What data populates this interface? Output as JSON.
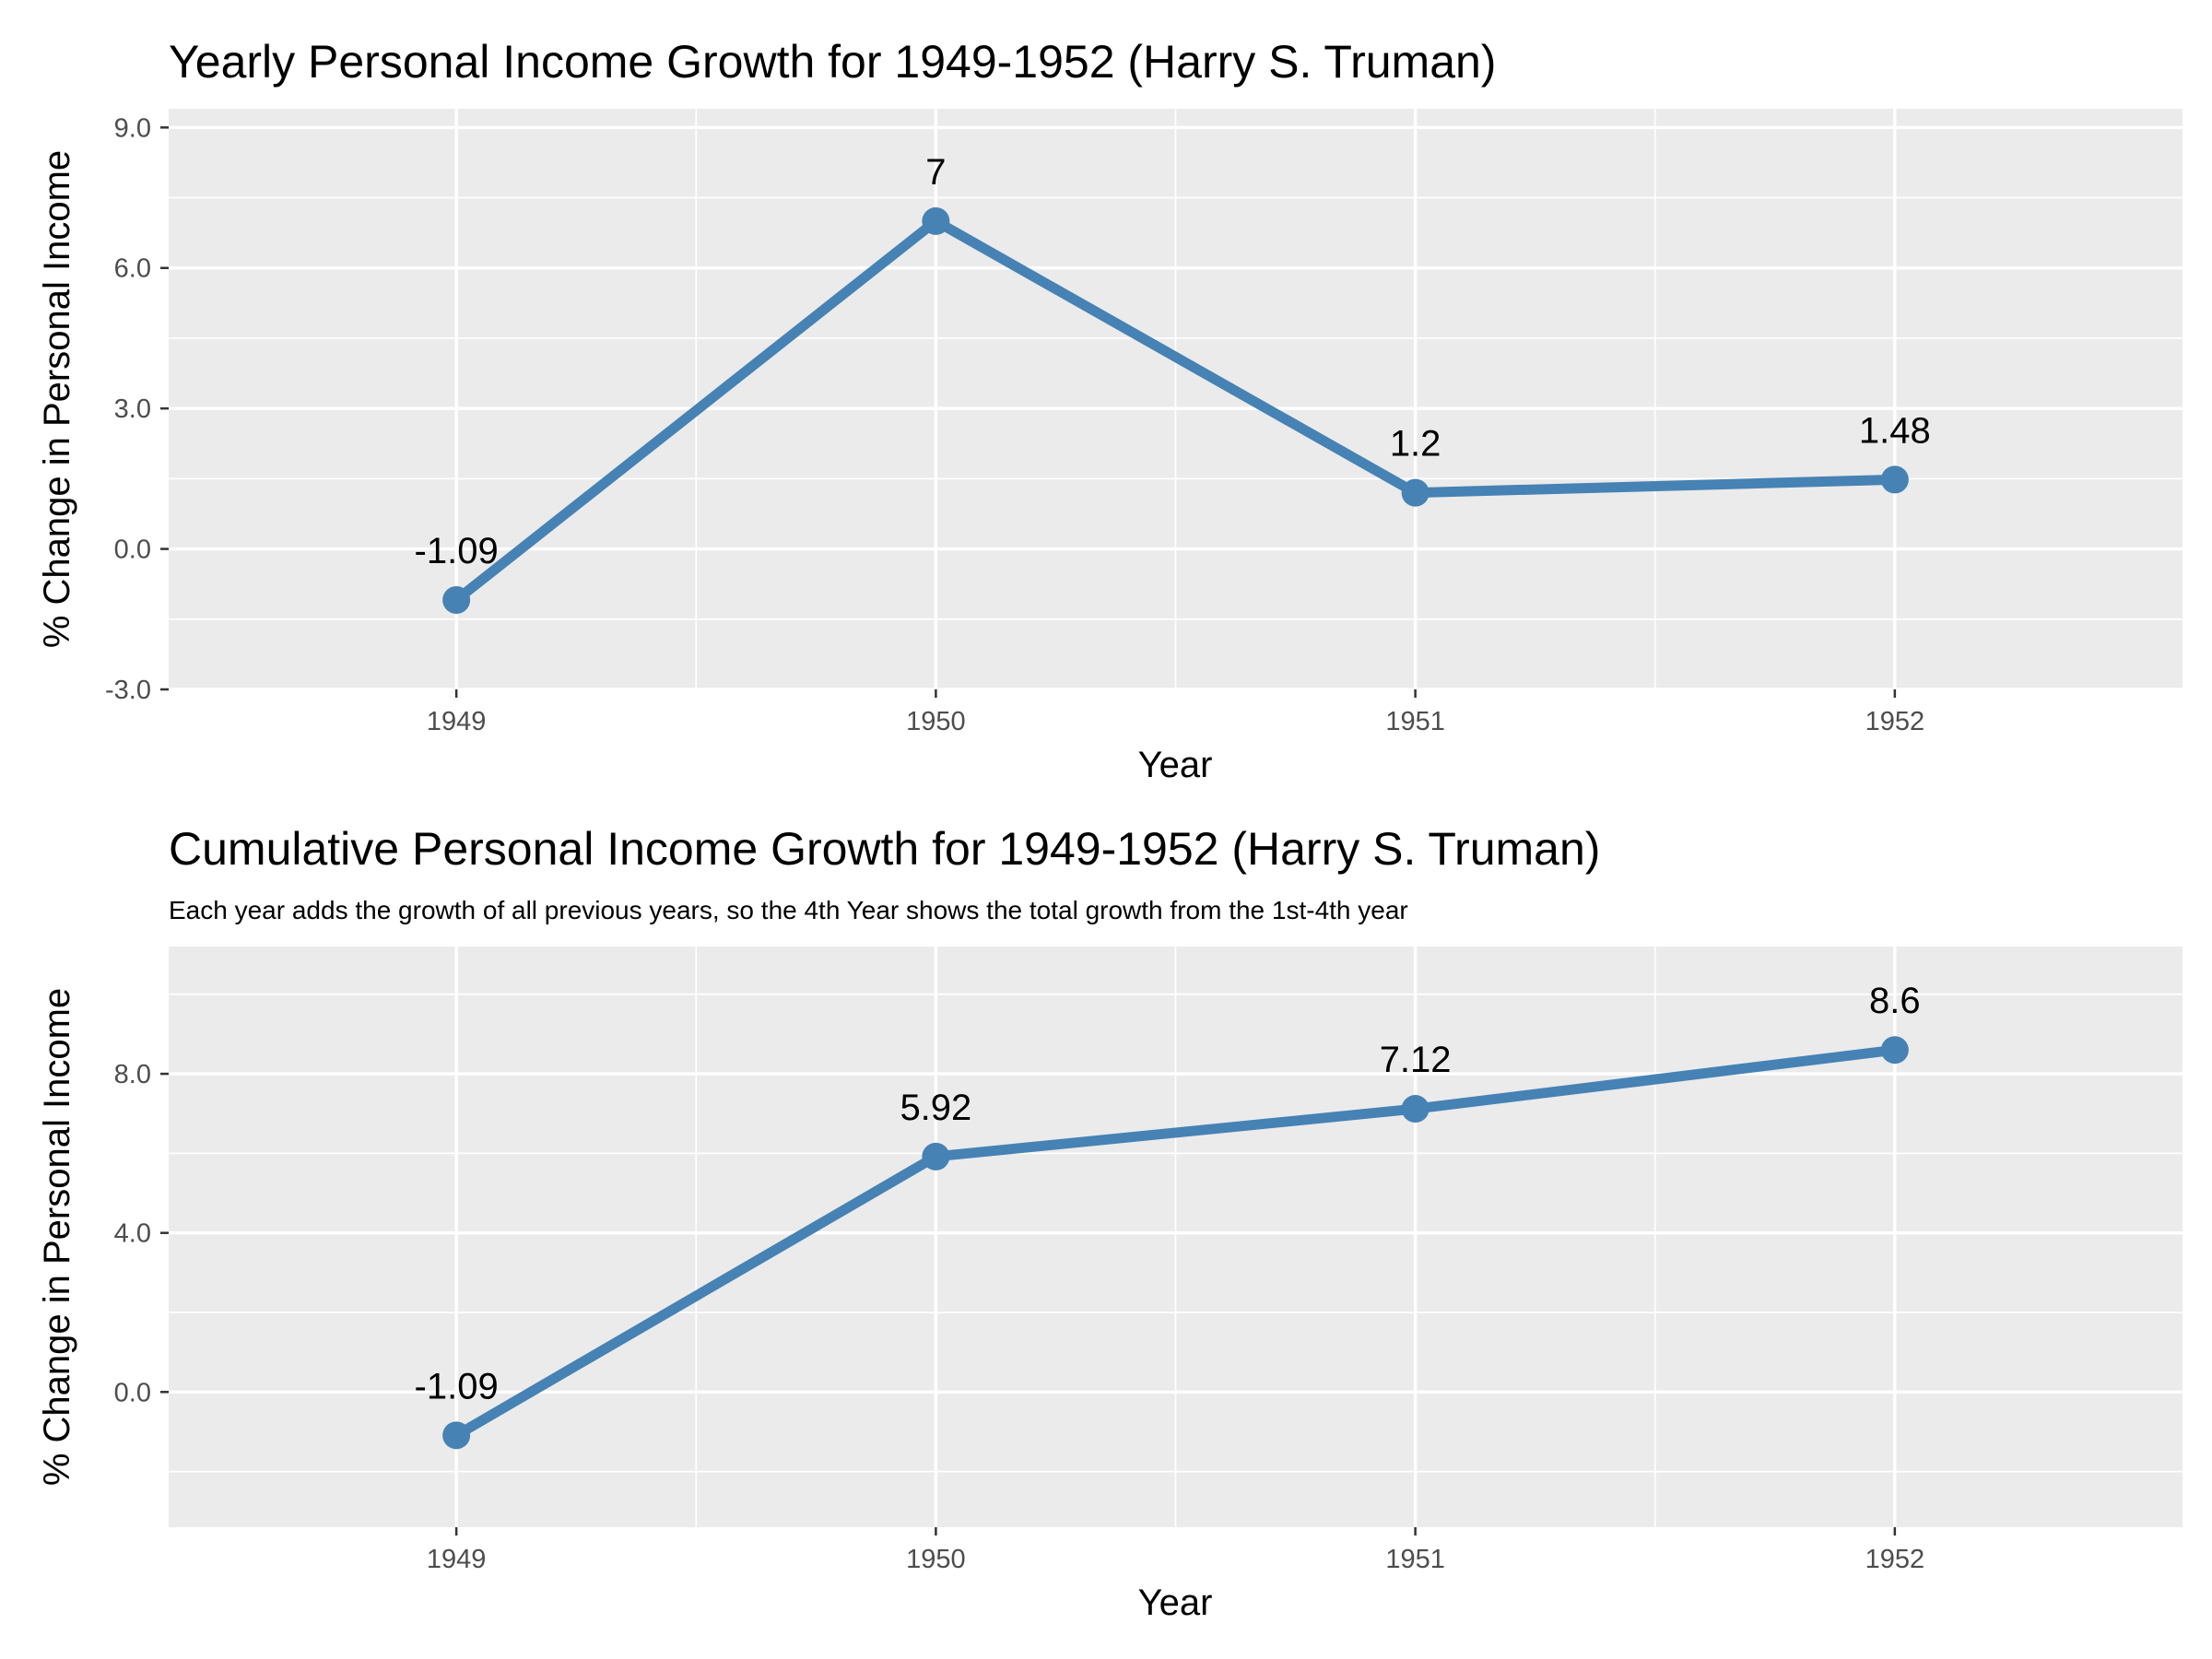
{
  "chart_data": [
    {
      "type": "line",
      "title": "Yearly Personal Income Growth for 1949-1952 (Harry S. Truman)",
      "subtitle": "",
      "xlabel": "Year",
      "ylabel": "% Change in Personal Income",
      "categories": [
        "1949",
        "1950",
        "1951",
        "1952"
      ],
      "values": [
        -1.09,
        7,
        1.2,
        1.48
      ],
      "data_labels": [
        "-1.09",
        "7",
        "1.2",
        "1.48"
      ],
      "ylim": [
        -3.0,
        9.4
      ],
      "yticks": [
        -3.0,
        0.0,
        3.0,
        6.0,
        9.0
      ],
      "ytick_labels": [
        "-3.0",
        "0.0",
        "3.0",
        "6.0",
        "9.0"
      ],
      "grid": true,
      "legend": "none",
      "color": "#4682B4"
    },
    {
      "type": "line",
      "title": "Cumulative Personal Income Growth for 1949-1952 (Harry S. Truman)",
      "subtitle": "Each year adds the growth of all previous years, so the 4th Year shows the total growth from the 1st-4th year",
      "xlabel": "Year",
      "ylabel": "% Change in Personal Income",
      "categories": [
        "1949",
        "1950",
        "1951",
        "1952"
      ],
      "values": [
        -1.09,
        5.92,
        7.12,
        8.6
      ],
      "data_labels": [
        "-1.09",
        "5.92",
        "7.12",
        "8.6"
      ],
      "ylim": [
        -3.4,
        11.2
      ],
      "yticks": [
        0.0,
        4.0,
        8.0
      ],
      "ytick_labels": [
        "0.0",
        "4.0",
        "8.0"
      ],
      "grid": true,
      "legend": "none",
      "color": "#4682B4"
    }
  ]
}
